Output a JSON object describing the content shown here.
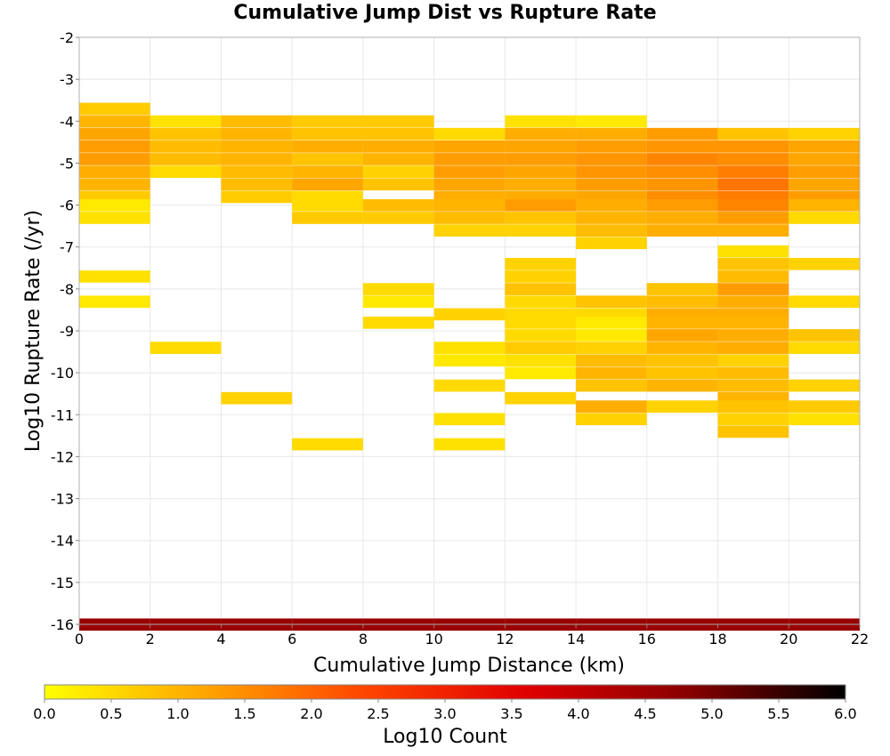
{
  "chart_data": {
    "type": "heatmap",
    "title": "Cumulative Jump Dist vs Rupture Rate",
    "xlabel": "Cumulative Jump Distance (km)",
    "ylabel": "Log10 Rupture Rate (/yr)",
    "xlim": [
      0,
      22
    ],
    "ylim": [
      -16,
      -2
    ],
    "x_ticks": [
      0,
      2,
      4,
      6,
      8,
      10,
      12,
      14,
      16,
      18,
      20,
      22
    ],
    "y_ticks": [
      -2,
      -3,
      -4,
      -5,
      -6,
      -7,
      -8,
      -9,
      -10,
      -11,
      -12,
      -13,
      -14,
      -15,
      -16
    ],
    "x_bin_width": 2,
    "y_bin_height": 0.28,
    "grid": true,
    "colorbar": {
      "label": "Log10 Count",
      "min": 0.0,
      "max": 6.0,
      "ticks": [
        "0.0",
        "0.5",
        "1.0",
        "1.5",
        "2.0",
        "2.5",
        "3.0",
        "3.5",
        "4.0",
        "4.5",
        "5.0",
        "5.5",
        "6.0"
      ],
      "colors": [
        "#ffff00",
        "#ffa500",
        "#ff4500",
        "#e00000",
        "#8b0000",
        "#000000"
      ]
    },
    "cells": [
      {
        "x": 0,
        "y": -3.7,
        "v": 0.7
      },
      {
        "x": 0,
        "y": -4.0,
        "v": 1.0
      },
      {
        "x": 0,
        "y": -4.3,
        "v": 1.2
      },
      {
        "x": 0,
        "y": -4.6,
        "v": 1.3
      },
      {
        "x": 0,
        "y": -4.9,
        "v": 1.3
      },
      {
        "x": 0,
        "y": -5.2,
        "v": 1.1
      },
      {
        "x": 0,
        "y": -5.5,
        "v": 1.0
      },
      {
        "x": 0,
        "y": -5.8,
        "v": 0.7
      },
      {
        "x": 0,
        "y": -6.0,
        "v": 0.3
      },
      {
        "x": 0,
        "y": -6.3,
        "v": 0.4
      },
      {
        "x": 0,
        "y": -7.7,
        "v": 0.4
      },
      {
        "x": 0,
        "y": -8.3,
        "v": 0.3
      },
      {
        "x": 2,
        "y": -4.0,
        "v": 0.4
      },
      {
        "x": 2,
        "y": -4.3,
        "v": 0.8
      },
      {
        "x": 2,
        "y": -4.6,
        "v": 0.9
      },
      {
        "x": 2,
        "y": -4.9,
        "v": 0.9
      },
      {
        "x": 2,
        "y": -5.2,
        "v": 0.5
      },
      {
        "x": 2,
        "y": -9.4,
        "v": 0.5
      },
      {
        "x": 4,
        "y": -4.0,
        "v": 0.9
      },
      {
        "x": 4,
        "y": -4.3,
        "v": 1.0
      },
      {
        "x": 4,
        "y": -4.6,
        "v": 1.0
      },
      {
        "x": 4,
        "y": -4.9,
        "v": 1.0
      },
      {
        "x": 4,
        "y": -5.2,
        "v": 0.9
      },
      {
        "x": 4,
        "y": -5.5,
        "v": 0.9
      },
      {
        "x": 4,
        "y": -5.8,
        "v": 0.7
      },
      {
        "x": 4,
        "y": -10.6,
        "v": 0.6
      },
      {
        "x": 6,
        "y": -4.0,
        "v": 0.7
      },
      {
        "x": 6,
        "y": -4.3,
        "v": 0.8
      },
      {
        "x": 6,
        "y": -4.6,
        "v": 1.1
      },
      {
        "x": 6,
        "y": -4.9,
        "v": 0.8
      },
      {
        "x": 6,
        "y": -5.2,
        "v": 1.0
      },
      {
        "x": 6,
        "y": -5.5,
        "v": 1.2
      },
      {
        "x": 6,
        "y": -5.8,
        "v": 0.5
      },
      {
        "x": 6,
        "y": -6.0,
        "v": 0.5
      },
      {
        "x": 6,
        "y": -6.3,
        "v": 0.7
      },
      {
        "x": 6,
        "y": -11.7,
        "v": 0.5
      },
      {
        "x": 8,
        "y": -4.0,
        "v": 0.7
      },
      {
        "x": 8,
        "y": -4.3,
        "v": 0.8
      },
      {
        "x": 8,
        "y": -4.6,
        "v": 1.1
      },
      {
        "x": 8,
        "y": -4.9,
        "v": 1.0
      },
      {
        "x": 8,
        "y": -5.2,
        "v": 0.6
      },
      {
        "x": 8,
        "y": -5.5,
        "v": 0.8
      },
      {
        "x": 8,
        "y": -6.0,
        "v": 0.9
      },
      {
        "x": 8,
        "y": -6.3,
        "v": 0.7
      },
      {
        "x": 8,
        "y": -8.0,
        "v": 0.5
      },
      {
        "x": 8,
        "y": -8.3,
        "v": 0.3
      },
      {
        "x": 8,
        "y": -8.8,
        "v": 0.5
      },
      {
        "x": 10,
        "y": -4.3,
        "v": 0.5
      },
      {
        "x": 10,
        "y": -4.6,
        "v": 1.2
      },
      {
        "x": 10,
        "y": -4.9,
        "v": 1.3
      },
      {
        "x": 10,
        "y": -5.2,
        "v": 1.3
      },
      {
        "x": 10,
        "y": -5.5,
        "v": 1.2
      },
      {
        "x": 10,
        "y": -5.8,
        "v": 1.1
      },
      {
        "x": 10,
        "y": -6.0,
        "v": 1.0
      },
      {
        "x": 10,
        "y": -6.3,
        "v": 0.9
      },
      {
        "x": 10,
        "y": -6.6,
        "v": 0.6
      },
      {
        "x": 10,
        "y": -8.6,
        "v": 0.6
      },
      {
        "x": 10,
        "y": -9.4,
        "v": 0.4
      },
      {
        "x": 10,
        "y": -9.7,
        "v": 0.3
      },
      {
        "x": 10,
        "y": -10.3,
        "v": 0.5
      },
      {
        "x": 10,
        "y": -11.1,
        "v": 0.4
      },
      {
        "x": 10,
        "y": -11.7,
        "v": 0.4
      },
      {
        "x": 12,
        "y": -4.0,
        "v": 0.4
      },
      {
        "x": 12,
        "y": -4.3,
        "v": 1.1
      },
      {
        "x": 12,
        "y": -4.6,
        "v": 1.2
      },
      {
        "x": 12,
        "y": -4.9,
        "v": 1.3
      },
      {
        "x": 12,
        "y": -5.2,
        "v": 1.2
      },
      {
        "x": 12,
        "y": -5.5,
        "v": 1.1
      },
      {
        "x": 12,
        "y": -5.8,
        "v": 1.1
      },
      {
        "x": 12,
        "y": -6.0,
        "v": 1.3
      },
      {
        "x": 12,
        "y": -6.3,
        "v": 0.8
      },
      {
        "x": 12,
        "y": -6.6,
        "v": 0.6
      },
      {
        "x": 12,
        "y": -7.4,
        "v": 0.6
      },
      {
        "x": 12,
        "y": -7.7,
        "v": 0.6
      },
      {
        "x": 12,
        "y": -8.0,
        "v": 0.8
      },
      {
        "x": 12,
        "y": -8.3,
        "v": 0.5
      },
      {
        "x": 12,
        "y": -8.6,
        "v": 0.5
      },
      {
        "x": 12,
        "y": -8.8,
        "v": 0.5
      },
      {
        "x": 12,
        "y": -9.1,
        "v": 0.5
      },
      {
        "x": 12,
        "y": -9.4,
        "v": 0.7
      },
      {
        "x": 12,
        "y": -9.7,
        "v": 0.4
      },
      {
        "x": 12,
        "y": -10.0,
        "v": 0.3
      },
      {
        "x": 12,
        "y": -10.6,
        "v": 0.6
      },
      {
        "x": 14,
        "y": -4.0,
        "v": 0.3
      },
      {
        "x": 14,
        "y": -4.3,
        "v": 1.1
      },
      {
        "x": 14,
        "y": -4.6,
        "v": 1.3
      },
      {
        "x": 14,
        "y": -4.9,
        "v": 1.4
      },
      {
        "x": 14,
        "y": -5.2,
        "v": 1.4
      },
      {
        "x": 14,
        "y": -5.5,
        "v": 1.3
      },
      {
        "x": 14,
        "y": -5.8,
        "v": 1.2
      },
      {
        "x": 14,
        "y": -6.0,
        "v": 1.1
      },
      {
        "x": 14,
        "y": -6.3,
        "v": 1.0
      },
      {
        "x": 14,
        "y": -6.6,
        "v": 0.9
      },
      {
        "x": 14,
        "y": -6.9,
        "v": 0.6
      },
      {
        "x": 14,
        "y": -8.3,
        "v": 0.8
      },
      {
        "x": 14,
        "y": -8.6,
        "v": 0.5
      },
      {
        "x": 14,
        "y": -8.8,
        "v": 0.3
      },
      {
        "x": 14,
        "y": -9.1,
        "v": 0.3
      },
      {
        "x": 14,
        "y": -9.4,
        "v": 0.6
      },
      {
        "x": 14,
        "y": -9.7,
        "v": 0.9
      },
      {
        "x": 14,
        "y": -10.0,
        "v": 1.0
      },
      {
        "x": 14,
        "y": -10.3,
        "v": 0.8
      },
      {
        "x": 14,
        "y": -10.8,
        "v": 1.1
      },
      {
        "x": 14,
        "y": -11.1,
        "v": 0.6
      },
      {
        "x": 16,
        "y": -4.3,
        "v": 1.3
      },
      {
        "x": 16,
        "y": -4.6,
        "v": 1.4
      },
      {
        "x": 16,
        "y": -4.9,
        "v": 1.6
      },
      {
        "x": 16,
        "y": -5.2,
        "v": 1.5
      },
      {
        "x": 16,
        "y": -5.5,
        "v": 1.4
      },
      {
        "x": 16,
        "y": -5.8,
        "v": 1.5
      },
      {
        "x": 16,
        "y": -6.0,
        "v": 1.3
      },
      {
        "x": 16,
        "y": -6.3,
        "v": 1.1
      },
      {
        "x": 16,
        "y": -6.6,
        "v": 1.1
      },
      {
        "x": 16,
        "y": -8.0,
        "v": 0.8
      },
      {
        "x": 16,
        "y": -8.3,
        "v": 0.9
      },
      {
        "x": 16,
        "y": -8.6,
        "v": 1.1
      },
      {
        "x": 16,
        "y": -8.8,
        "v": 1.0
      },
      {
        "x": 16,
        "y": -9.1,
        "v": 1.2
      },
      {
        "x": 16,
        "y": -9.4,
        "v": 1.0
      },
      {
        "x": 16,
        "y": -9.7,
        "v": 0.8
      },
      {
        "x": 16,
        "y": -10.0,
        "v": 0.8
      },
      {
        "x": 16,
        "y": -10.3,
        "v": 1.0
      },
      {
        "x": 16,
        "y": -10.8,
        "v": 0.6
      },
      {
        "x": 18,
        "y": -4.3,
        "v": 0.8
      },
      {
        "x": 18,
        "y": -4.6,
        "v": 1.4
      },
      {
        "x": 18,
        "y": -4.9,
        "v": 1.5
      },
      {
        "x": 18,
        "y": -5.2,
        "v": 1.7
      },
      {
        "x": 18,
        "y": -5.5,
        "v": 1.8
      },
      {
        "x": 18,
        "y": -5.8,
        "v": 1.7
      },
      {
        "x": 18,
        "y": -6.0,
        "v": 1.6
      },
      {
        "x": 18,
        "y": -6.3,
        "v": 1.3
      },
      {
        "x": 18,
        "y": -6.6,
        "v": 1.1
      },
      {
        "x": 18,
        "y": -7.1,
        "v": 0.4
      },
      {
        "x": 18,
        "y": -7.4,
        "v": 0.8
      },
      {
        "x": 18,
        "y": -7.7,
        "v": 0.9
      },
      {
        "x": 18,
        "y": -8.0,
        "v": 1.3
      },
      {
        "x": 18,
        "y": -8.3,
        "v": 1.1
      },
      {
        "x": 18,
        "y": -8.6,
        "v": 1.1
      },
      {
        "x": 18,
        "y": -8.8,
        "v": 1.0
      },
      {
        "x": 18,
        "y": -9.1,
        "v": 1.1
      },
      {
        "x": 18,
        "y": -9.4,
        "v": 1.1
      },
      {
        "x": 18,
        "y": -9.7,
        "v": 0.6
      },
      {
        "x": 18,
        "y": -10.0,
        "v": 0.9
      },
      {
        "x": 18,
        "y": -10.3,
        "v": 0.9
      },
      {
        "x": 18,
        "y": -10.6,
        "v": 1.0
      },
      {
        "x": 18,
        "y": -10.8,
        "v": 0.8
      },
      {
        "x": 18,
        "y": -11.1,
        "v": 0.6
      },
      {
        "x": 18,
        "y": -11.4,
        "v": 0.8
      },
      {
        "x": 20,
        "y": -4.3,
        "v": 0.6
      },
      {
        "x": 20,
        "y": -4.6,
        "v": 1.2
      },
      {
        "x": 20,
        "y": -4.9,
        "v": 1.2
      },
      {
        "x": 20,
        "y": -5.2,
        "v": 1.3
      },
      {
        "x": 20,
        "y": -5.5,
        "v": 1.2
      },
      {
        "x": 20,
        "y": -5.8,
        "v": 1.3
      },
      {
        "x": 20,
        "y": -6.0,
        "v": 1.0
      },
      {
        "x": 20,
        "y": -6.3,
        "v": 0.5
      },
      {
        "x": 20,
        "y": -7.4,
        "v": 0.6
      },
      {
        "x": 20,
        "y": -8.3,
        "v": 0.5
      },
      {
        "x": 20,
        "y": -9.1,
        "v": 0.8
      },
      {
        "x": 20,
        "y": -9.4,
        "v": 0.5
      },
      {
        "x": 20,
        "y": -10.3,
        "v": 0.6
      },
      {
        "x": 20,
        "y": -10.8,
        "v": 0.7
      },
      {
        "x": 20,
        "y": -11.1,
        "v": 0.4
      },
      {
        "x": 0,
        "y": -16.0,
        "v": 4.6
      },
      {
        "x": 2,
        "y": -16.0,
        "v": 4.6
      },
      {
        "x": 4,
        "y": -16.0,
        "v": 4.6
      },
      {
        "x": 6,
        "y": -16.0,
        "v": 4.6
      },
      {
        "x": 8,
        "y": -16.0,
        "v": 4.6
      },
      {
        "x": 10,
        "y": -16.0,
        "v": 4.6
      },
      {
        "x": 12,
        "y": -16.0,
        "v": 4.6
      },
      {
        "x": 14,
        "y": -16.0,
        "v": 4.6
      },
      {
        "x": 16,
        "y": -16.0,
        "v": 4.6
      },
      {
        "x": 18,
        "y": -16.0,
        "v": 4.6
      },
      {
        "x": 20,
        "y": -16.0,
        "v": 4.6
      }
    ]
  }
}
